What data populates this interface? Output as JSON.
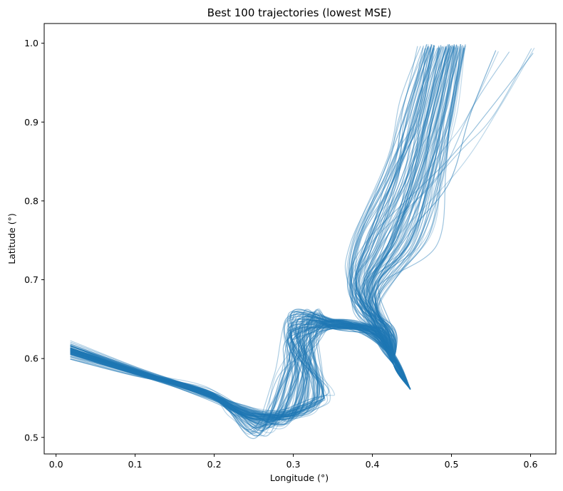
{
  "chart_data": {
    "type": "line",
    "title": "Best 100 trajectories (lowest MSE)",
    "xlabel": "Longitude (°)",
    "ylabel": "Latitude (°)",
    "xlim": [
      -0.015,
      0.632
    ],
    "ylim": [
      0.479,
      1.025
    ],
    "xticks": [
      0.0,
      0.1,
      0.2,
      0.3,
      0.4,
      0.5,
      0.6
    ],
    "xtick_labels": [
      "0.0",
      "0.1",
      "0.2",
      "0.3",
      "0.4",
      "0.5",
      "0.6"
    ],
    "yticks": [
      0.5,
      0.6,
      0.7,
      0.8,
      0.9,
      1.0
    ],
    "ytick_labels": [
      "0.5",
      "0.6",
      "0.7",
      "0.8",
      "0.9",
      "1.0"
    ],
    "grid": false,
    "series_color": "#1f77b4",
    "series_count": 100,
    "trajectory_envelope": {
      "start_points": [
        [
          0.018,
          0.615
        ],
        [
          0.018,
          0.61
        ]
      ],
      "end_points": [
        [
          0.455,
          0.995
        ],
        [
          0.518,
          0.993
        ],
        [
          0.605,
          0.987
        ]
      ],
      "representative_path": [
        [
          0.018,
          0.612
        ],
        [
          0.1,
          0.583
        ],
        [
          0.2,
          0.55
        ],
        [
          0.28,
          0.525
        ],
        [
          0.3,
          0.6
        ],
        [
          0.33,
          0.645
        ],
        [
          0.39,
          0.633
        ],
        [
          0.42,
          0.6
        ],
        [
          0.448,
          0.562
        ],
        [
          0.415,
          0.6
        ],
        [
          0.41,
          0.66
        ],
        [
          0.44,
          0.7
        ],
        [
          0.47,
          0.78
        ],
        [
          0.48,
          0.88
        ],
        [
          0.487,
          0.995
        ]
      ]
    }
  }
}
